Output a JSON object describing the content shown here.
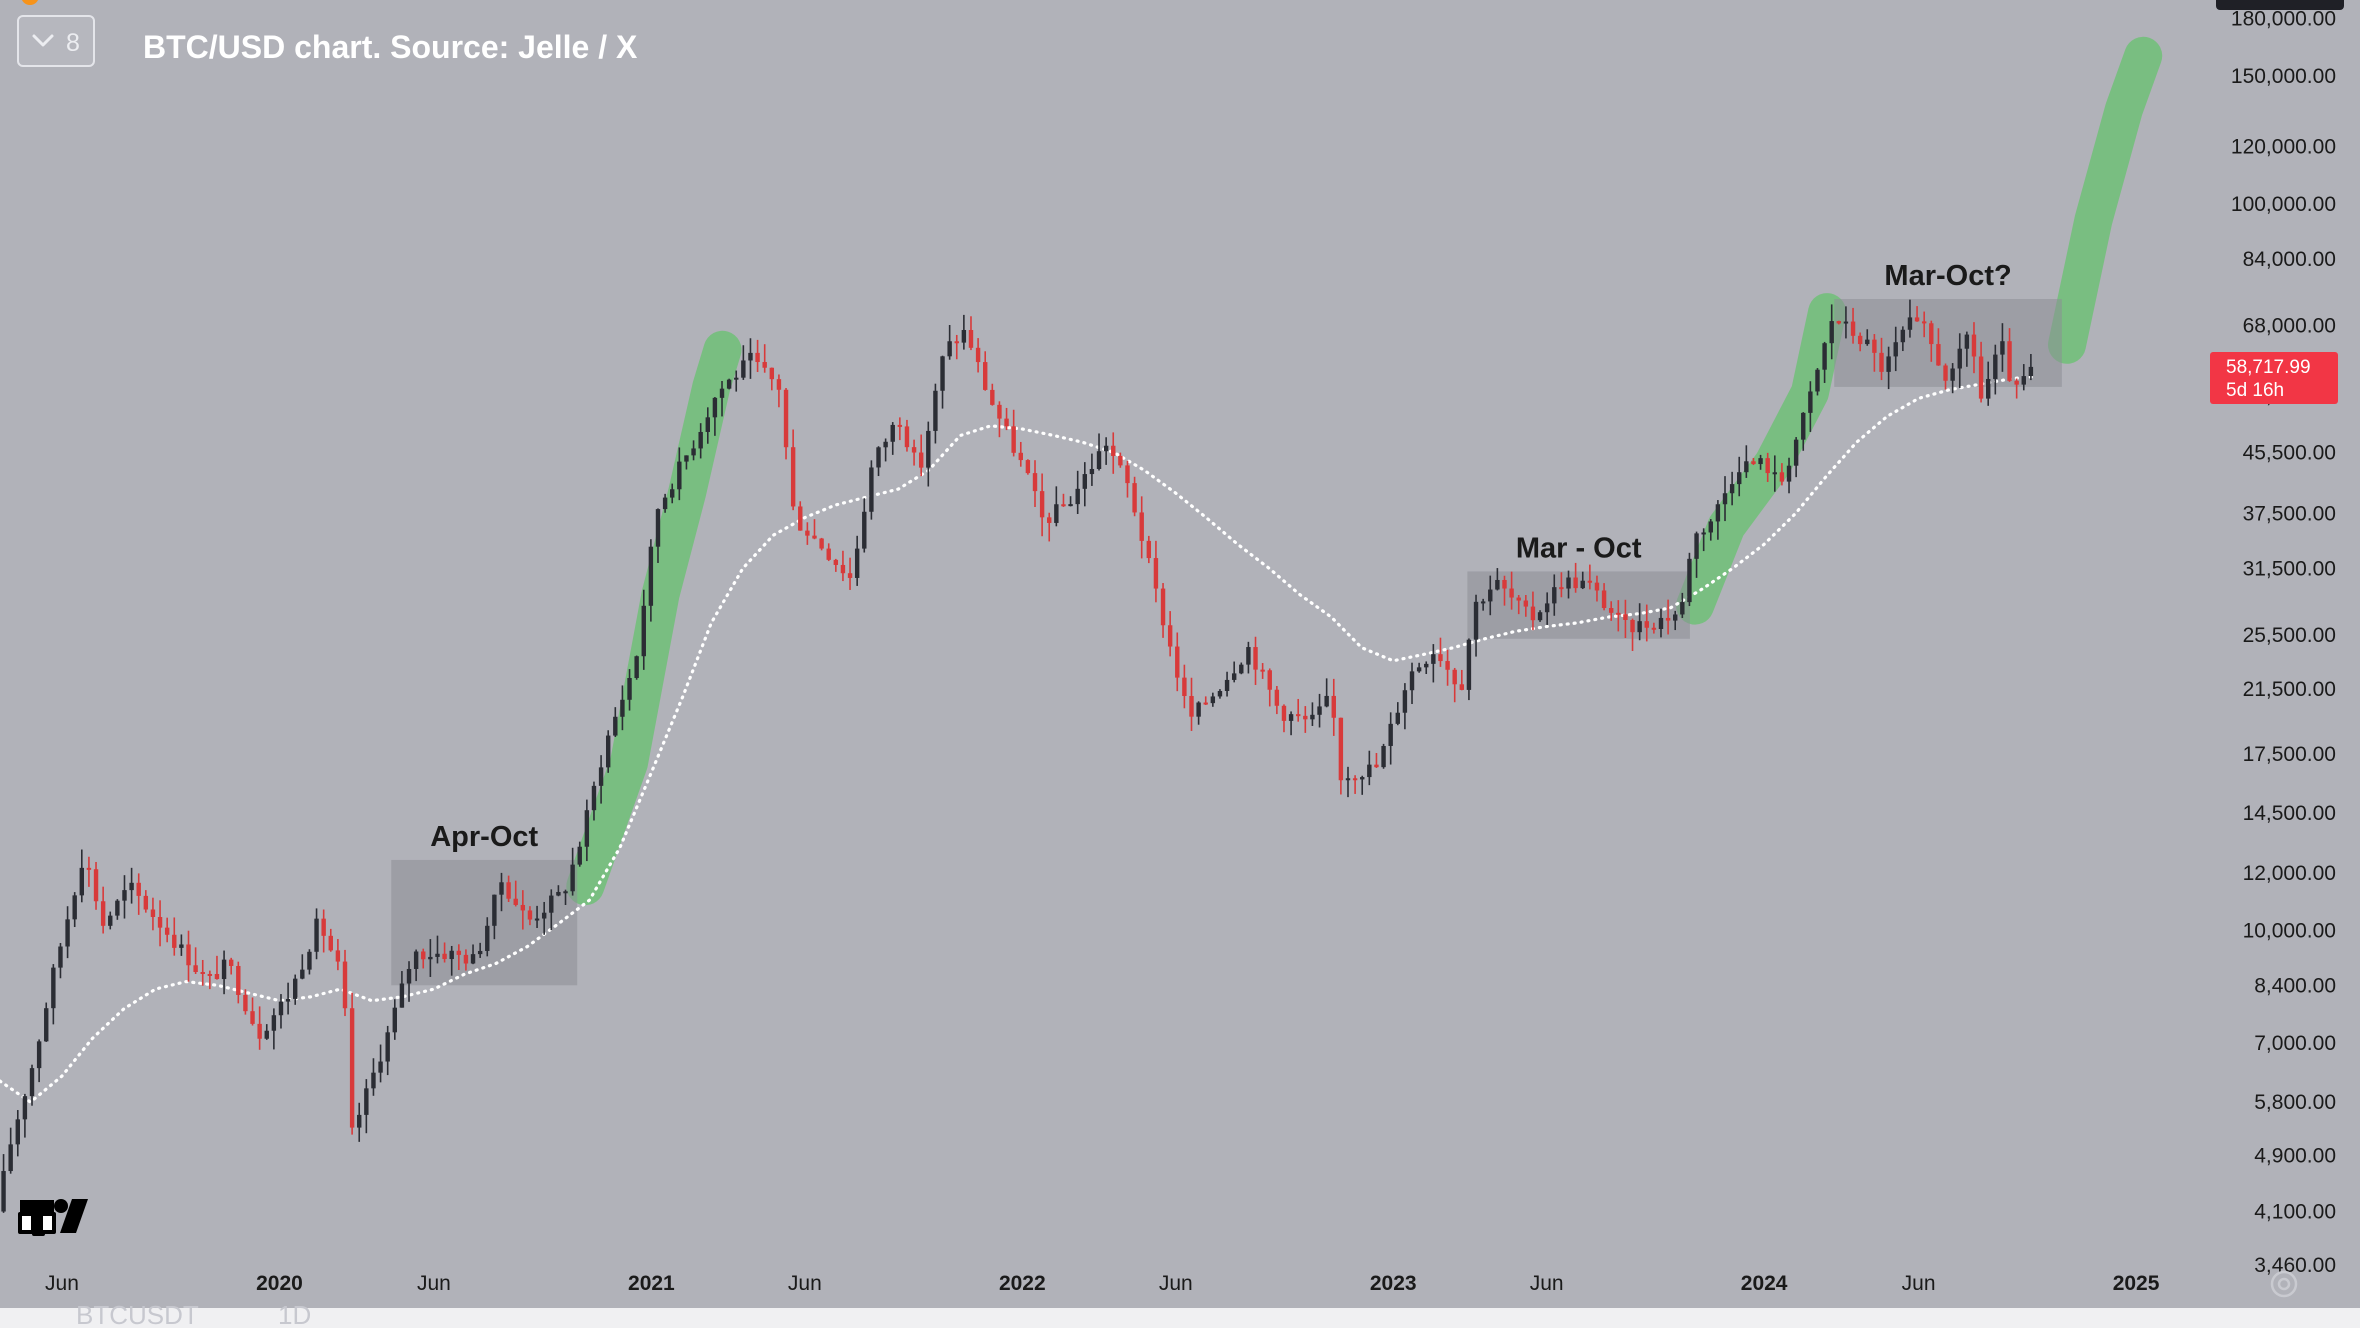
{
  "header": {
    "collapse_count": "8",
    "title": "BTC/USD chart. Source: Jelle / X",
    "symbol": "BTCUSDT",
    "interval": "1D"
  },
  "colors": {
    "background": "#b1b2b9",
    "up_candle": "#2b2d34",
    "down_candle": "#d83a3a",
    "moving_average": "#ffffff",
    "highlight": "#70bf77",
    "range_box": "#8d8e96",
    "price_tag": "#f23645",
    "text": "#1a1a1a",
    "title_text": "#ffffff"
  },
  "price_tag": {
    "price": "58,717.99",
    "countdown": "5d 16h"
  },
  "chart_data": {
    "type": "candlestick",
    "title": "BTC/USD chart. Source: Jelle / X",
    "y_scale": "log",
    "ylim": [
      3300,
      185000
    ],
    "xlim": [
      "2019-04-01",
      "2025-02-28"
    ],
    "grid": false,
    "y_ticks": [
      "3,460.00",
      "4,100.00",
      "4,900.00",
      "5,800.00",
      "7,000.00",
      "8,400.00",
      "10,000.00",
      "12,000.00",
      "14,500.00",
      "17,500.00",
      "21,500.00",
      "25,500.00",
      "31,500.00",
      "37,500.00",
      "45,500.00",
      "54,500.00",
      "68,000.00",
      "84,000.00",
      "100,000.00",
      "120,000.00",
      "150,000.00",
      "180,000.00"
    ],
    "x_ticks": [
      {
        "label": "Jun",
        "date": "2019-06-01"
      },
      {
        "label": "2020",
        "date": "2020-01-01",
        "bold": true
      },
      {
        "label": "Jun",
        "date": "2020-06-01"
      },
      {
        "label": "2021",
        "date": "2021-01-01",
        "bold": true
      },
      {
        "label": "Jun",
        "date": "2021-06-01"
      },
      {
        "label": "2022",
        "date": "2022-01-01",
        "bold": true
      },
      {
        "label": "Jun",
        "date": "2022-06-01"
      },
      {
        "label": "2023",
        "date": "2023-01-01",
        "bold": true
      },
      {
        "label": "Jun",
        "date": "2023-06-01"
      },
      {
        "label": "2024",
        "date": "2024-01-01",
        "bold": true
      },
      {
        "label": "Jun",
        "date": "2024-06-01"
      },
      {
        "label": "2025",
        "date": "2025-01-01",
        "bold": true
      }
    ],
    "candle_interval_days": 7,
    "price_path": [
      [
        "2019-04-01",
        4100
      ],
      [
        "2019-04-15",
        5100
      ],
      [
        "2019-05-10",
        6800
      ],
      [
        "2019-05-25",
        8500
      ],
      [
        "2019-06-26",
        12800
      ],
      [
        "2019-07-15",
        10200
      ],
      [
        "2019-08-10",
        11500
      ],
      [
        "2019-09-20",
        9800
      ],
      [
        "2019-10-25",
        8500
      ],
      [
        "2019-11-15",
        9000
      ],
      [
        "2019-12-15",
        7200
      ],
      [
        "2020-01-15",
        8200
      ],
      [
        "2020-02-12",
        10300
      ],
      [
        "2020-03-08",
        8500
      ],
      [
        "2020-03-13",
        5100
      ],
      [
        "2020-04-20",
        7200
      ],
      [
        "2020-05-15",
        9300
      ],
      [
        "2020-06-20",
        9300
      ],
      [
        "2020-07-15",
        9100
      ],
      [
        "2020-08-10",
        11700
      ],
      [
        "2020-09-05",
        10300
      ],
      [
        "2020-10-10",
        11300
      ],
      [
        "2020-10-25",
        13000
      ],
      [
        "2020-11-20",
        18000
      ],
      [
        "2020-12-20",
        23500
      ],
      [
        "2021-01-10",
        38000
      ],
      [
        "2021-02-15",
        47000
      ],
      [
        "2021-03-10",
        55000
      ],
      [
        "2021-04-12",
        61000
      ],
      [
        "2021-05-10",
        56000
      ],
      [
        "2021-05-25",
        37000
      ],
      [
        "2021-06-20",
        34000
      ],
      [
        "2021-07-20",
        30500
      ],
      [
        "2021-08-10",
        44000
      ],
      [
        "2021-09-05",
        51000
      ],
      [
        "2021-09-25",
        42500
      ],
      [
        "2021-10-20",
        63000
      ],
      [
        "2021-11-10",
        67000
      ],
      [
        "2021-12-01",
        55000
      ],
      [
        "2022-01-10",
        42000
      ],
      [
        "2022-01-25",
        36500
      ],
      [
        "2022-02-20",
        39000
      ],
      [
        "2022-03-28",
        47000
      ],
      [
        "2022-04-20",
        40500
      ],
      [
        "2022-05-15",
        29500
      ],
      [
        "2022-06-18",
        19500
      ],
      [
        "2022-07-15",
        21500
      ],
      [
        "2022-08-15",
        24500
      ],
      [
        "2022-09-15",
        20000
      ],
      [
        "2022-10-15",
        19300
      ],
      [
        "2022-11-05",
        21000
      ],
      [
        "2022-11-12",
        16300
      ],
      [
        "2022-12-20",
        16800
      ],
      [
        "2023-01-20",
        22500
      ],
      [
        "2023-02-15",
        24500
      ],
      [
        "2023-03-12",
        21500
      ],
      [
        "2023-03-25",
        28000
      ],
      [
        "2023-04-15",
        30200
      ],
      [
        "2023-05-20",
        26800
      ],
      [
        "2023-06-20",
        30300
      ],
      [
        "2023-07-15",
        30000
      ],
      [
        "2023-08-20",
        26100
      ],
      [
        "2023-09-15",
        26500
      ],
      [
        "2023-10-15",
        27500
      ],
      [
        "2023-10-25",
        34500
      ],
      [
        "2023-11-15",
        37000
      ],
      [
        "2023-12-10",
        43800
      ],
      [
        "2024-01-05",
        44000
      ],
      [
        "2024-01-20",
        41000
      ],
      [
        "2024-02-15",
        52000
      ],
      [
        "2024-03-12",
        70000
      ],
      [
        "2024-04-15",
        64000
      ],
      [
        "2024-05-01",
        59000
      ],
      [
        "2024-05-25",
        68500
      ],
      [
        "2024-06-10",
        67000
      ],
      [
        "2024-07-05",
        56500
      ],
      [
        "2024-07-25",
        67500
      ],
      [
        "2024-08-05",
        54000
      ],
      [
        "2024-08-25",
        64000
      ],
      [
        "2024-09-07",
        54500
      ],
      [
        "2024-09-20",
        58700
      ]
    ],
    "ma_path": [
      [
        "2019-04-01",
        6200
      ],
      [
        "2019-05-01",
        5800
      ],
      [
        "2019-06-01",
        6300
      ],
      [
        "2019-07-01",
        7100
      ],
      [
        "2019-08-01",
        7800
      ],
      [
        "2019-09-01",
        8300
      ],
      [
        "2019-10-01",
        8500
      ],
      [
        "2019-11-01",
        8400
      ],
      [
        "2019-12-01",
        8200
      ],
      [
        "2020-01-01",
        8000
      ],
      [
        "2020-02-01",
        8100
      ],
      [
        "2020-03-01",
        8300
      ],
      [
        "2020-04-01",
        8000
      ],
      [
        "2020-05-01",
        8100
      ],
      [
        "2020-06-01",
        8300
      ],
      [
        "2020-07-01",
        8700
      ],
      [
        "2020-08-01",
        9000
      ],
      [
        "2020-09-01",
        9500
      ],
      [
        "2020-10-01",
        10200
      ],
      [
        "2020-11-01",
        11000
      ],
      [
        "2020-12-01",
        13000
      ],
      [
        "2021-01-01",
        16500
      ],
      [
        "2021-02-01",
        21000
      ],
      [
        "2021-03-01",
        26500
      ],
      [
        "2021-04-01",
        31500
      ],
      [
        "2021-05-01",
        35000
      ],
      [
        "2021-06-01",
        37000
      ],
      [
        "2021-07-01",
        38500
      ],
      [
        "2021-08-01",
        39500
      ],
      [
        "2021-09-01",
        40500
      ],
      [
        "2021-10-01",
        43000
      ],
      [
        "2021-11-01",
        48000
      ],
      [
        "2021-12-01",
        49500
      ],
      [
        "2022-01-01",
        49000
      ],
      [
        "2022-02-01",
        48000
      ],
      [
        "2022-03-01",
        47000
      ],
      [
        "2022-04-01",
        45500
      ],
      [
        "2022-05-01",
        43000
      ],
      [
        "2022-06-01",
        40000
      ],
      [
        "2022-07-01",
        37000
      ],
      [
        "2022-08-01",
        34000
      ],
      [
        "2022-09-01",
        31500
      ],
      [
        "2022-10-01",
        29000
      ],
      [
        "2022-11-01",
        27000
      ],
      [
        "2022-12-01",
        24500
      ],
      [
        "2023-01-01",
        23500
      ],
      [
        "2023-02-01",
        24000
      ],
      [
        "2023-03-01",
        24500
      ],
      [
        "2023-04-01",
        25200
      ],
      [
        "2023-05-01",
        25800
      ],
      [
        "2023-06-01",
        26200
      ],
      [
        "2023-07-01",
        26500
      ],
      [
        "2023-08-01",
        27000
      ],
      [
        "2023-09-01",
        27300
      ],
      [
        "2023-10-01",
        27800
      ],
      [
        "2023-11-01",
        29500
      ],
      [
        "2023-12-01",
        31500
      ],
      [
        "2024-01-01",
        34000
      ],
      [
        "2024-02-01",
        37500
      ],
      [
        "2024-03-01",
        42000
      ],
      [
        "2024-04-01",
        47000
      ],
      [
        "2024-05-01",
        51000
      ],
      [
        "2024-06-01",
        54000
      ],
      [
        "2024-07-01",
        55500
      ],
      [
        "2024-08-01",
        56500
      ],
      [
        "2024-09-01",
        57500
      ],
      [
        "2024-09-20",
        57800
      ]
    ],
    "range_boxes": [
      {
        "label": "Apr-Oct",
        "start": "2020-04-20",
        "end": "2020-10-20",
        "low": 8400,
        "high": 12500
      },
      {
        "label": "Mar - Oct",
        "start": "2023-03-15",
        "end": "2023-10-20",
        "low": 25200,
        "high": 31200
      },
      {
        "label": "Mar-Oct?",
        "start": "2024-03-10",
        "end": "2024-10-20",
        "low": 56000,
        "high": 74000
      }
    ],
    "highlight_paths": [
      [
        [
          "2020-10-28",
          11500
        ],
        [
          "2020-12-10",
          17000
        ],
        [
          "2021-01-10",
          29000
        ],
        [
          "2021-02-05",
          40000
        ],
        [
          "2021-03-01",
          56000
        ],
        [
          "2021-03-12",
          63000
        ]
      ],
      [
        [
          "2023-10-25",
          28000
        ],
        [
          "2023-11-25",
          36000
        ],
        [
          "2024-01-10",
          44000
        ],
        [
          "2024-02-15",
          55000
        ],
        [
          "2024-03-03",
          71000
        ]
      ],
      [
        [
          "2024-10-25",
          64000
        ],
        [
          "2024-11-20",
          95000
        ],
        [
          "2024-12-20",
          135000
        ],
        [
          "2025-01-08",
          160000
        ]
      ]
    ]
  }
}
